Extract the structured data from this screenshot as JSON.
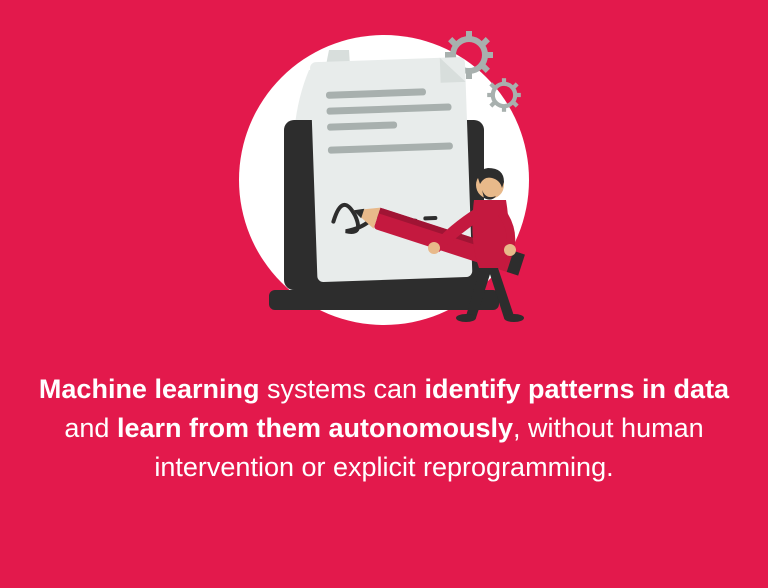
{
  "type": "infographic",
  "background_color": "#e3194c",
  "text_color": "#ffffff",
  "font_size": 27,
  "caption": {
    "segments": [
      {
        "text": "Machine learning",
        "bold": true
      },
      {
        "text": " systems can ",
        "bold": false
      },
      {
        "text": "identify patterns in data",
        "bold": true
      },
      {
        "text": " and ",
        "bold": false
      },
      {
        "text": "learn from them autonomously",
        "bold": true
      },
      {
        "text": ", without human intervention or explicit reprogramming.",
        "bold": false
      }
    ]
  },
  "illustration": {
    "circle_bg": "#ffffff",
    "laptop_color": "#2d2d2d",
    "paper_color": "#e8eceb",
    "paper_line_color": "#a8b0ae",
    "signature_color": "#2d2d2d",
    "pencil_body": "#c4193f",
    "pencil_tip": "#e8b98a",
    "pencil_lead": "#2d2d2d",
    "person_shirt": "#c4193f",
    "person_skin": "#e8b98a",
    "person_pants": "#2d2d2d",
    "person_hair": "#2d2d2d",
    "leaf_color": "#e8eceb",
    "gear_color": "#a8b0ae"
  }
}
